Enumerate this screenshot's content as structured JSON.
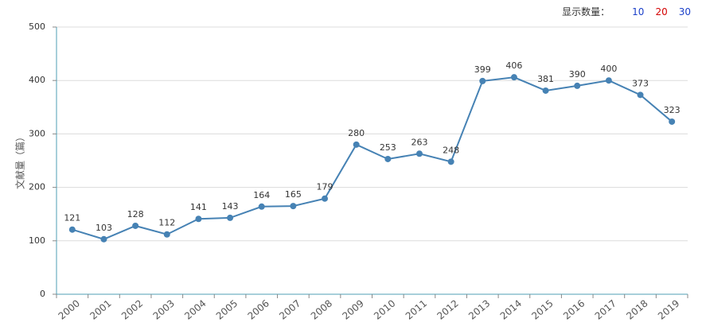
{
  "toolbar": {
    "label": "显示数量：",
    "options": [
      {
        "label": "10",
        "color": "#1a3fc9"
      },
      {
        "label": "20",
        "color": "#d40000"
      },
      {
        "label": "30",
        "color": "#1a3fc9"
      }
    ]
  },
  "chart_data": {
    "type": "line",
    "title": "",
    "xlabel": "",
    "ylabel": "文献量（篇）",
    "ylim": [
      0,
      500
    ],
    "yticks": [
      0,
      100,
      200,
      300,
      400,
      500
    ],
    "grid": true,
    "line_color": "#4682b4",
    "categories": [
      "2000",
      "2001",
      "2002",
      "2003",
      "2004",
      "2005",
      "2006",
      "2007",
      "2008",
      "2009",
      "2010",
      "2011",
      "2012",
      "2013",
      "2014",
      "2015",
      "2016",
      "2017",
      "2018",
      "2019"
    ],
    "series": [
      {
        "values": [
          121,
          103,
          128,
          112,
          141,
          143,
          164,
          165,
          179,
          280,
          253,
          263,
          248,
          399,
          406,
          381,
          390,
          400,
          373,
          323
        ]
      }
    ]
  }
}
